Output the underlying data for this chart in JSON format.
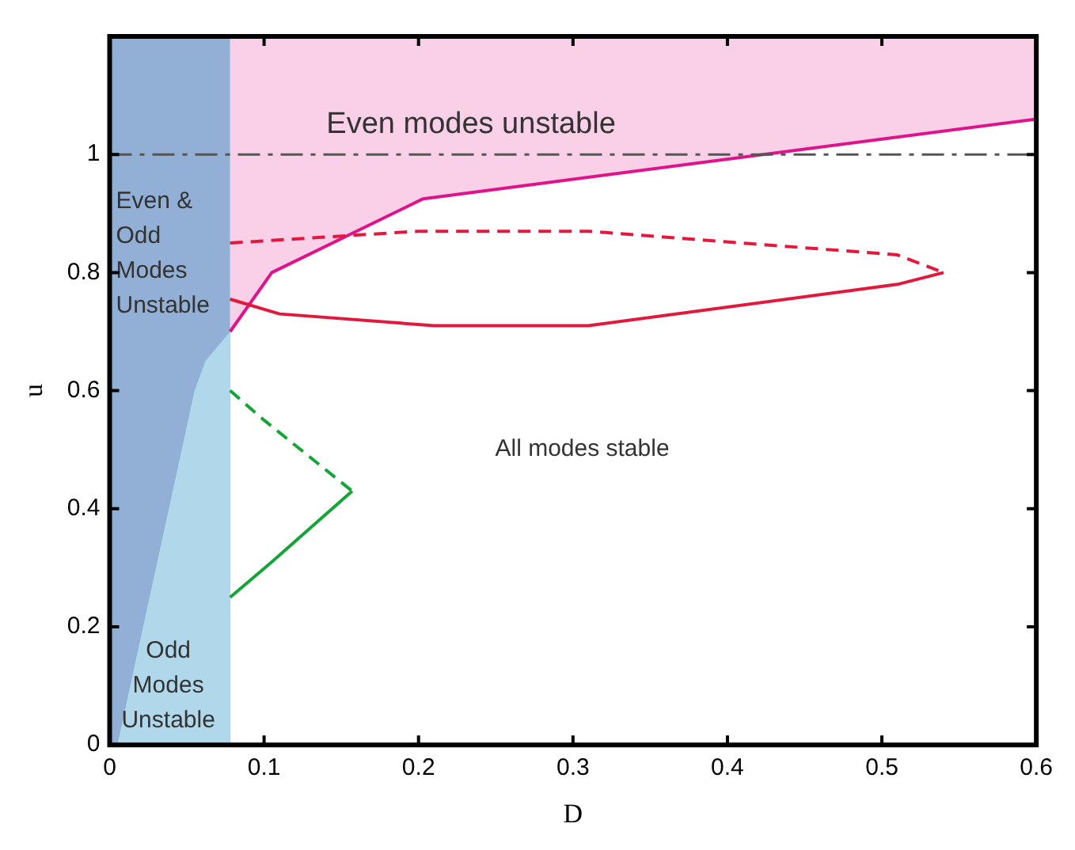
{
  "chart_data": {
    "type": "line",
    "xlabel": "D",
    "ylabel": "u",
    "xlim": [
      0,
      0.6
    ],
    "ylim": [
      0,
      1.2
    ],
    "xticks": [
      0,
      0.1,
      0.2,
      0.3,
      0.4,
      0.5,
      0.6
    ],
    "yticks": [
      0,
      0.2,
      0.4,
      0.6,
      0.8,
      1
    ],
    "grid": false,
    "legend": false,
    "marker": "none",
    "bands": [
      {
        "axis": "x",
        "from": 0,
        "to": 0.078,
        "color": "#92afd6",
        "label": "Even & Odd Modes Unstable"
      }
    ],
    "ref_lines": [
      {
        "axis": "y",
        "value": 1,
        "color": "#555555",
        "line_style": "dashed"
      }
    ],
    "series": [
      {
        "type": "area",
        "color": "#b0d8ea",
        "x": [
          0.005,
          0.055,
          0.062,
          0.078
        ],
        "values": [
          0,
          0.6,
          0.65,
          0.7
        ]
      },
      {
        "color": "#e0138c",
        "line_style": "solid",
        "x": [
          0.078,
          0.105,
          0.203,
          0.6
        ],
        "values": [
          0.7,
          0.8,
          0.925,
          1.06
        ],
        "lower": [
          0.7,
          0.8,
          0.925,
          1.06
        ],
        "upper": [
          1.2,
          1.2,
          1.2,
          1.2
        ]
      },
      {
        "color": "#e2183c",
        "line_style": "dashed",
        "x": [
          0.078,
          0.2,
          0.31,
          0.51,
          0.54
        ],
        "values": [
          0.85,
          0.87,
          0.87,
          0.83,
          0.8
        ]
      },
      {
        "color": "#e2183c",
        "line_style": "solid",
        "x": [
          0.078,
          0.11,
          0.21,
          0.31,
          0.51,
          0.54
        ],
        "values": [
          0.755,
          0.73,
          0.71,
          0.71,
          0.78,
          0.8
        ]
      },
      {
        "color": "#13a538",
        "line_style": "dashed",
        "x": [
          0.078,
          0.1,
          0.157
        ],
        "values": [
          0.6,
          0.55,
          0.43
        ]
      },
      {
        "color": "#13a538",
        "line_style": "solid",
        "x": [
          0.078,
          0.105,
          0.157
        ],
        "values": [
          0.25,
          0.31,
          0.43
        ]
      }
    ],
    "annotations": [
      "Even modes unstable",
      "All modes stable",
      "Odd Modes Unstable"
    ]
  }
}
